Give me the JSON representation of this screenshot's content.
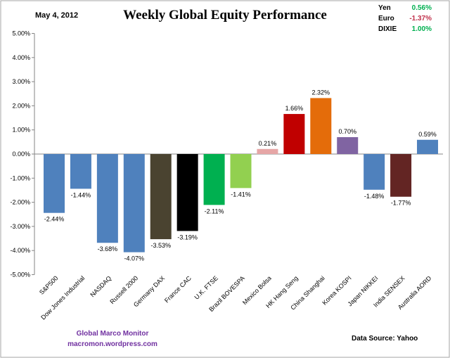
{
  "chart_data": {
    "type": "bar",
    "title": "Weekly Global Equity Performance",
    "date": "May 4, 2012",
    "xlabel": "",
    "ylabel": "",
    "ylim": [
      -5,
      5
    ],
    "yticks": [
      "5.00%",
      "4.00%",
      "3.00%",
      "2.00%",
      "1.00%",
      "0.00%",
      "-1.00%",
      "-2.00%",
      "-3.00%",
      "-4.00%",
      "-5.00%"
    ],
    "grid": false,
    "categories": [
      "S&P500",
      "Dow Jones Industrial",
      "NASDAQ",
      "Russell 2000",
      "Germany DAX",
      "France CAC",
      "U.K. FTSE",
      "Brazil BOVESPA",
      "Mexico Bolsa",
      "HK  Hang Seng",
      "China Shanghai",
      "Korea KOSPI",
      "Japan NIKKEI",
      "India SENSEX",
      "Australia AORD"
    ],
    "values": [
      -2.44,
      -1.44,
      -3.68,
      -4.07,
      -3.53,
      -3.19,
      -2.11,
      -1.41,
      0.21,
      1.66,
      2.32,
      0.7,
      -1.48,
      -1.77,
      0.59
    ],
    "value_labels": [
      "-2.44%",
      "-1.44%",
      "-3.68%",
      "-4.07%",
      "-3.53%",
      "-3.19%",
      "-2.11%",
      "-1.41%",
      "0.21%",
      "1.66%",
      "2.32%",
      "0.70%",
      "-1.48%",
      "-1.77%",
      "0.59%"
    ],
    "colors": [
      "#4f81bd",
      "#4f81bd",
      "#4f81bd",
      "#4f81bd",
      "#4a4330",
      "#000000",
      "#00b050",
      "#92d050",
      "#e6a6a6",
      "#c00000",
      "#e46c0a",
      "#8064a2",
      "#4f81bd",
      "#632523",
      "#4f81bd"
    ]
  },
  "currencies": [
    {
      "name": "Yen",
      "value": "0.56%",
      "color": "#00b050"
    },
    {
      "name": "Euro",
      "value": "-1.37%",
      "color": "#c0304a"
    },
    {
      "name": "DIXIE",
      "value": "1.00%",
      "color": "#00b050"
    }
  ],
  "footer": {
    "brand_line1": "Global  Marco  Monitor",
    "brand_line2": "macromon.wordpress.com",
    "brand_color": "#7030a0",
    "source": "Data Source:   Yahoo"
  }
}
